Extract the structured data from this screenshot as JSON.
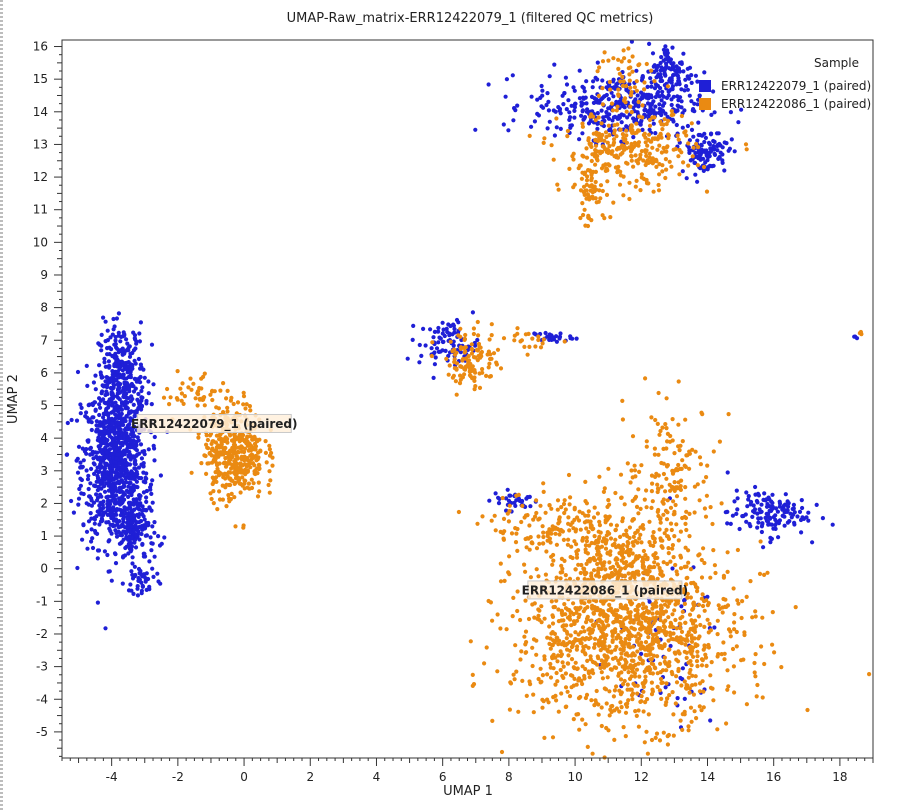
{
  "chart_data": {
    "type": "scatter",
    "title": "UMAP-Raw_matrix-ERR12422079_1 (filtered QC metrics)",
    "xlabel": "UMAP 1",
    "ylabel": "UMAP 2",
    "xlim": [
      -5.5,
      19
    ],
    "ylim": [
      -5.8,
      16.2
    ],
    "xticks": [
      -4,
      -2,
      0,
      2,
      4,
      6,
      8,
      10,
      12,
      14,
      16,
      18
    ],
    "yticks": [
      -5,
      -4,
      -3,
      -2,
      -1,
      0,
      1,
      2,
      3,
      4,
      5,
      6,
      7,
      8,
      9,
      10,
      11,
      12,
      13,
      14,
      15,
      16
    ],
    "grid": false,
    "legend": {
      "title": "Sample",
      "position": "top-right"
    },
    "series": [
      {
        "name": "ERR12422079_1 (paired)",
        "color": "#1f1fd6",
        "clusters": [
          {
            "cx": -3.9,
            "cy": 3.2,
            "sx": 0.5,
            "sy": 1.25,
            "n": 900
          },
          {
            "cx": -3.7,
            "cy": 5.9,
            "sx": 0.35,
            "sy": 0.8,
            "n": 280
          },
          {
            "cx": -3.3,
            "cy": 1.2,
            "sx": 0.3,
            "sy": 0.6,
            "n": 150
          },
          {
            "cx": -3.1,
            "cy": -0.4,
            "sx": 0.25,
            "sy": 0.3,
            "n": 40
          },
          {
            "cx": 11.3,
            "cy": 14.2,
            "sx": 1.3,
            "sy": 0.5,
            "n": 380
          },
          {
            "cx": 12.9,
            "cy": 15.2,
            "sx": 0.35,
            "sy": 0.45,
            "n": 110
          },
          {
            "cx": 13.9,
            "cy": 12.8,
            "sx": 0.35,
            "sy": 0.35,
            "n": 110
          },
          {
            "cx": 6.2,
            "cy": 6.9,
            "sx": 0.45,
            "sy": 0.35,
            "n": 90
          },
          {
            "cx": 9.3,
            "cy": 7.1,
            "sx": 0.3,
            "sy": 0.08,
            "n": 25
          },
          {
            "cx": 15.8,
            "cy": 1.7,
            "sx": 0.6,
            "sy": 0.35,
            "n": 140
          },
          {
            "cx": 8.2,
            "cy": 2.1,
            "sx": 0.35,
            "sy": 0.15,
            "n": 35
          },
          {
            "cx": 12.5,
            "cy": -2.5,
            "sx": 1.0,
            "sy": 1.3,
            "n": 60
          },
          {
            "cx": 18.5,
            "cy": 7.1,
            "sx": 0.05,
            "sy": 0.05,
            "n": 3
          }
        ]
      },
      {
        "name": "ERR12422086_1 (paired)",
        "color": "#ea8a12",
        "clusters": [
          {
            "cx": -0.3,
            "cy": 3.6,
            "sx": 0.45,
            "sy": 0.75,
            "n": 420
          },
          {
            "cx": -1.5,
            "cy": 5.4,
            "sx": 0.5,
            "sy": 0.35,
            "n": 40
          },
          {
            "cx": 11.6,
            "cy": -2.0,
            "sx": 1.7,
            "sy": 1.35,
            "n": 1300
          },
          {
            "cx": 11.3,
            "cy": 0.3,
            "sx": 1.0,
            "sy": 0.9,
            "n": 300
          },
          {
            "cx": 12.9,
            "cy": 3.0,
            "sx": 0.7,
            "sy": 1.0,
            "n": 150
          },
          {
            "cx": 9.2,
            "cy": 1.3,
            "sx": 0.9,
            "sy": 0.5,
            "n": 120
          },
          {
            "cx": 11.6,
            "cy": 12.8,
            "sx": 1.0,
            "sy": 0.6,
            "n": 300
          },
          {
            "cx": 10.5,
            "cy": 11.5,
            "sx": 0.3,
            "sy": 0.5,
            "n": 60
          },
          {
            "cx": 11.5,
            "cy": 15.1,
            "sx": 0.4,
            "sy": 0.5,
            "n": 50
          },
          {
            "cx": 6.9,
            "cy": 6.4,
            "sx": 0.4,
            "sy": 0.45,
            "n": 110
          },
          {
            "cx": 8.7,
            "cy": 7.0,
            "sx": 0.4,
            "sy": 0.15,
            "n": 20
          },
          {
            "cx": 18.6,
            "cy": 7.2,
            "sx": 0.04,
            "sy": 0.04,
            "n": 3
          }
        ]
      }
    ],
    "annotations": [
      {
        "text": "ERR12422079_1 (paired)",
        "x": -0.9,
        "y": 4.45
      },
      {
        "text": "ERR12422086_1 (paired)",
        "x": 10.9,
        "y": -0.65
      }
    ]
  }
}
